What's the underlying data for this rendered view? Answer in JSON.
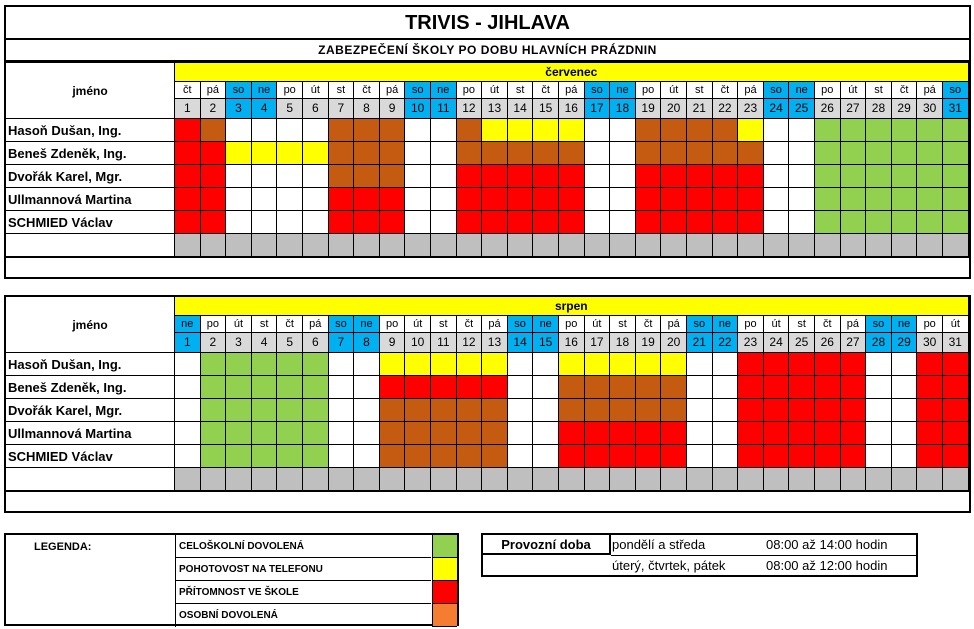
{
  "header": {
    "title": "TRIVIS - JIHLAVA",
    "subtitle": "ZABEZPEČENÍ ŠKOLY PO DOBU HLAVNÍCH PRÁZDNIN"
  },
  "colors": {
    "green": "#92d050",
    "yellow": "#ffff00",
    "red": "#ff0000",
    "brown": "#c55a11",
    "orange": "#f47d32",
    "gray": "#bfbfbf",
    "blue": "#00b0f0",
    "header_yellow": "#ffff00",
    "weekday_bg": "#d9d9d9"
  },
  "legend": {
    "title": "LEGENDA:",
    "items": [
      {
        "label": "CELOŠKOLNÍ DOVOLENÁ",
        "color": "#92d050"
      },
      {
        "label": "POHOTOVOST NA TELEFONU",
        "color": "#ffff00"
      },
      {
        "label": "PŘÍTOMNOST VE ŠKOLE",
        "color": "#ff0000"
      },
      {
        "label": "OSOBNÍ  DOVOLENÁ",
        "color": "#f47d32"
      }
    ]
  },
  "hours": {
    "label": "Provozní doba",
    "rows": [
      {
        "days": "pondělí a středa",
        "time": "08:00 až 14:00 hodin"
      },
      {
        "days": "úterý, čtvrtek, pátek",
        "time": "08:00 až 12:00 hodin"
      }
    ]
  },
  "schedules": [
    {
      "month": "červenec",
      "name_header": "jméno",
      "weekdays": [
        "čt",
        "pá",
        "so",
        "ne",
        "po",
        "út",
        "st",
        "čt",
        "pá",
        "so",
        "ne",
        "po",
        "út",
        "st",
        "čt",
        "pá",
        "so",
        "ne",
        "po",
        "út",
        "st",
        "čt",
        "pá",
        "so",
        "ne",
        "po",
        "út",
        "st",
        "čt",
        "pá",
        "so"
      ],
      "days": [
        "1",
        "2",
        "3",
        "4",
        "5",
        "6",
        "7",
        "8",
        "9",
        "10",
        "11",
        "12",
        "13",
        "14",
        "15",
        "16",
        "17",
        "18",
        "19",
        "20",
        "21",
        "22",
        "23",
        "24",
        "25",
        "26",
        "27",
        "28",
        "29",
        "30",
        "31"
      ],
      "people": [
        {
          "name": "Hasoň Dušan, Ing.",
          "cells": "RBWWWWBBBWWBYYYYWWBBBBYWWGGGGGG"
        },
        {
          "name": "Beneš Zdeněk, Ing.",
          "cells": "RRYYYYBBBWWBBBBBWWBBBBBWWGGGGGG"
        },
        {
          "name": "Dvořák Karel, Mgr.",
          "cells": "RRWWWWBBBWWRRRRRWWRRRRRWWGGGGGG"
        },
        {
          "name": "Ullmannová Martina",
          "cells": "RRWWWWRRRWWRRRRRWWRRRRRWWGGGGGG"
        },
        {
          "name": "SCHMIED Václav",
          "cells": "RRWWWWRRRWWRRRRRWWRRRRRWWGGGGGG"
        },
        {
          "name": "",
          "cells": "XXXXXXXXXXXXXXXXXXXXXXXXXXXXXXX"
        },
        {
          "name": "",
          "cells": "XXXXXXXXXXXXXXXXXXXXXXXXXXXXXXX"
        }
      ]
    },
    {
      "month": "srpen",
      "name_header": "jméno",
      "weekdays": [
        "ne",
        "po",
        "út",
        "st",
        "čt",
        "pá",
        "so",
        "ne",
        "po",
        "út",
        "st",
        "čt",
        "pá",
        "so",
        "ne",
        "po",
        "út",
        "st",
        "čt",
        "pá",
        "so",
        "ne",
        "po",
        "út",
        "st",
        "čt",
        "pá",
        "so",
        "ne",
        "po",
        "út"
      ],
      "days": [
        "1",
        "2",
        "3",
        "4",
        "5",
        "6",
        "7",
        "8",
        "9",
        "10",
        "11",
        "12",
        "13",
        "14",
        "15",
        "16",
        "17",
        "18",
        "19",
        "20",
        "21",
        "22",
        "23",
        "24",
        "25",
        "26",
        "27",
        "28",
        "29",
        "30",
        "31"
      ],
      "people": [
        {
          "name": "Hasoň Dušan, Ing.",
          "cells": "WGGGGGWWYYYYYWWYYYYYWWRRRRRWWRR"
        },
        {
          "name": "Beneš Zdeněk, Ing.",
          "cells": "WGGGGGWWRRRRRWWBBBBBWWRRRRRWWRR"
        },
        {
          "name": "Dvořák Karel, Mgr.",
          "cells": "WGGGGGWWBBBBBWWBBBBBWWRRRRRWWRR"
        },
        {
          "name": "Ullmannová Martina",
          "cells": "WGGGGGWWBBBBBWWRRRRRWWRRRRRWWRR"
        },
        {
          "name": "SCHMIED Václav",
          "cells": "WGGGGGWWBBBBBWWRRRRRWWRRRRRWWRR"
        },
        {
          "name": "",
          "cells": "XXXXXXXXXXXXXXXXXXXXXXXXXXXXXXX"
        },
        {
          "name": "",
          "cells": "XXXXXXXXXXXXXXXXXXXXXXXXXXXXXXX"
        }
      ]
    }
  ]
}
